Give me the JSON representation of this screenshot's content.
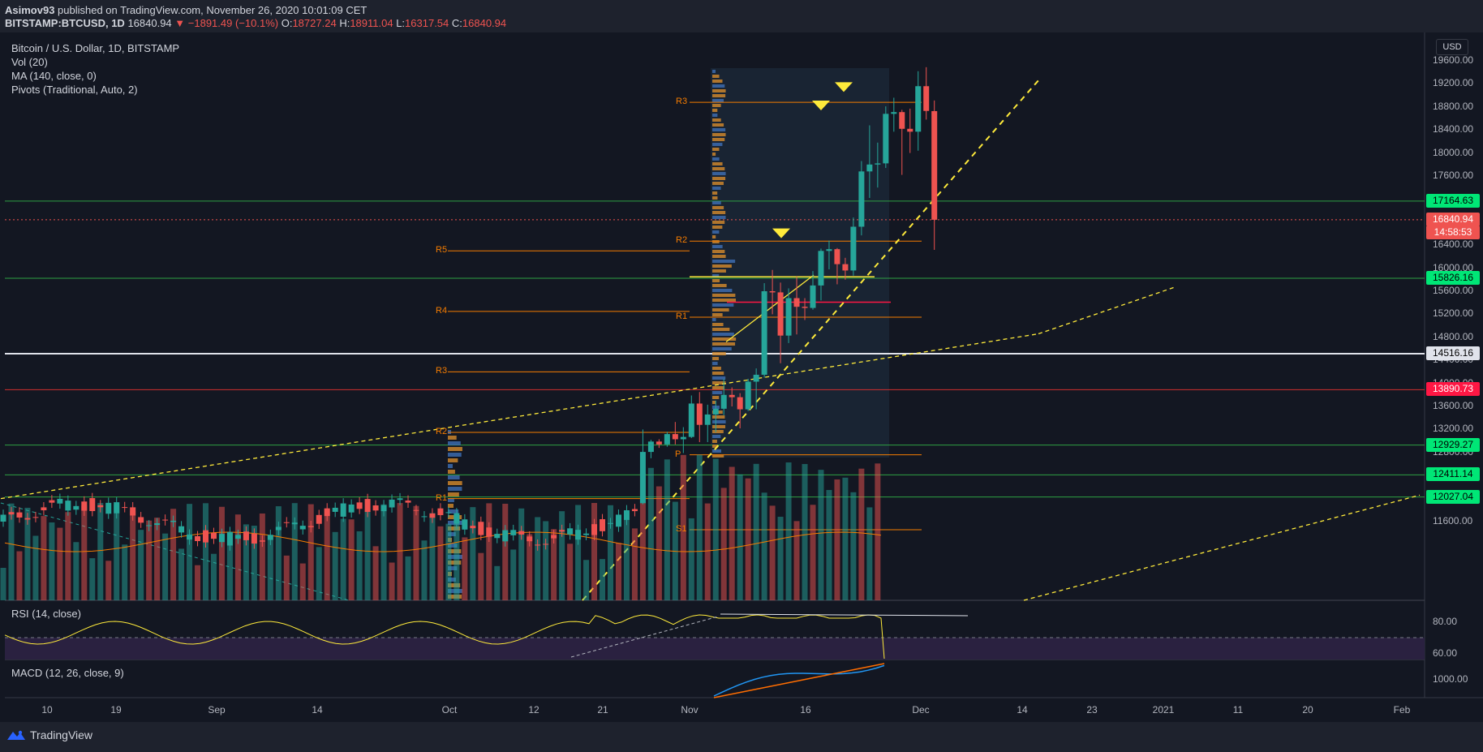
{
  "header": {
    "author": "Asimov93",
    "published": " published on TradingView.com, November 26, 2020 10:01:09 CET",
    "symbol": "BITSTAMP:BTCUSD, 1D",
    "last": "16840.94",
    "change": "▼ −1891.49 (−10.1%)",
    "o_label": "O:",
    "o": "18727.24",
    "h_label": "H:",
    "h": "18911.04",
    "l_label": "L:",
    "l": "16317.54",
    "c_label": "C:",
    "c": "16840.94"
  },
  "legend": {
    "title": "Bitcoin / U.S. Dollar, 1D, BITSTAMP",
    "vol": "Vol (20)",
    "ma": "MA (140, close, 0)",
    "pivots": "Pivots (Traditional, Auto, 2)",
    "rsi": "RSI (14, close)",
    "macd": "MACD (12, 26, close, 9)"
  },
  "currency_button": "USD",
  "footer": {
    "brand": "TradingView"
  },
  "chart_data": {
    "type": "candlestick",
    "symbol": "BTCUSD",
    "interval": "1D",
    "price_ticks": [
      "19600.00",
      "19200.00",
      "18800.00",
      "18400.00",
      "18000.00",
      "17600.00",
      "16400.00",
      "16000.00",
      "15600.00",
      "15200.00",
      "14800.00",
      "14400.00",
      "14000.00",
      "13600.00",
      "13200.00",
      "12800.00",
      "11600.00"
    ],
    "price_tags": [
      {
        "label": "17164.63",
        "bg": "#00e676",
        "fg": "#000000",
        "price": 17164.63
      },
      {
        "label": "16840.94",
        "bg": "#ef5350",
        "fg": "#ffffff",
        "price": 16840.94
      },
      {
        "label": "14:58:53",
        "bg": "#ef5350",
        "fg": "#ffffff",
        "price": 16610
      },
      {
        "label": "15826.16",
        "bg": "#00e676",
        "fg": "#000000",
        "price": 15826.16
      },
      {
        "label": "14516.16",
        "bg": "#e0e3eb",
        "fg": "#000000",
        "price": 14516.16
      },
      {
        "label": "13890.73",
        "bg": "#ff1744",
        "fg": "#ffffff",
        "price": 13890.73
      },
      {
        "label": "12929.27",
        "bg": "#00e676",
        "fg": "#000000",
        "price": 12929.27
      },
      {
        "label": "12411.14",
        "bg": "#00e676",
        "fg": "#000000",
        "price": 12411.14
      },
      {
        "label": "12027.04",
        "bg": "#00e676",
        "fg": "#000000",
        "price": 12027.04
      }
    ],
    "horizontal_levels": [
      {
        "price": 17164.63,
        "color": "#2ea043"
      },
      {
        "price": 16840.94,
        "color": "#ef5350",
        "dotted": true
      },
      {
        "price": 15826.16,
        "color": "#2ea043"
      },
      {
        "price": 14516.16,
        "color": "#e0e3eb"
      },
      {
        "price": 13890.73,
        "color": "#d32f2f"
      },
      {
        "price": 12929.27,
        "color": "#2ea043"
      },
      {
        "price": 12411.14,
        "color": "#2ea043"
      },
      {
        "price": 12027.04,
        "color": "#2ea043"
      }
    ],
    "pivot_levels_current": [
      {
        "label": "R3",
        "price": 18880
      },
      {
        "label": "R2",
        "price": 16470
      },
      {
        "label": "R1",
        "price": 15150
      },
      {
        "label": "P",
        "price": 12760
      },
      {
        "label": "S1",
        "price": 11460
      }
    ],
    "pivot_levels_previous": [
      {
        "label": "R5",
        "price": 16300
      },
      {
        "label": "R4",
        "price": 15250
      },
      {
        "label": "R3",
        "price": 14200
      },
      {
        "label": "R2",
        "price": 13150
      },
      {
        "label": "R1",
        "price": 12000
      }
    ],
    "date_ticks": [
      "10",
      "19",
      "Sep",
      "14",
      "Oct",
      "12",
      "21",
      "Nov",
      "16",
      "Dec",
      "14",
      "23",
      "2021",
      "11",
      "20",
      "Feb"
    ],
    "rsi_ticks": [
      "80.00",
      "60.00"
    ],
    "macd_ticks": [
      "1000.00"
    ],
    "candles": [
      {
        "d": "Oct 21",
        "o": 11920,
        "h": 13200,
        "l": 11900,
        "c": 12810
      },
      {
        "d": "Oct 22",
        "o": 12810,
        "h": 13020,
        "l": 12700,
        "c": 12990
      },
      {
        "d": "Oct 23",
        "o": 12990,
        "h": 13030,
        "l": 12880,
        "c": 12940
      },
      {
        "d": "Oct 24",
        "o": 12940,
        "h": 13160,
        "l": 12900,
        "c": 13120
      },
      {
        "d": "Oct 25",
        "o": 13120,
        "h": 13330,
        "l": 12940,
        "c": 13030
      },
      {
        "d": "Oct 26",
        "o": 13030,
        "h": 13240,
        "l": 12790,
        "c": 13070
      },
      {
        "d": "Oct 27",
        "o": 13070,
        "h": 13790,
        "l": 13050,
        "c": 13650
      },
      {
        "d": "Oct 28",
        "o": 13650,
        "h": 13850,
        "l": 12980,
        "c": 13280
      },
      {
        "d": "Oct 29",
        "o": 13280,
        "h": 13630,
        "l": 12980,
        "c": 13460
      },
      {
        "d": "Oct 30",
        "o": 13460,
        "h": 13700,
        "l": 13150,
        "c": 13560
      },
      {
        "d": "Oct 31",
        "o": 13560,
        "h": 14080,
        "l": 13450,
        "c": 13800
      },
      {
        "d": "Nov 1",
        "o": 13800,
        "h": 13930,
        "l": 13600,
        "c": 13760
      },
      {
        "d": "Nov 2",
        "o": 13760,
        "h": 13830,
        "l": 13220,
        "c": 13550
      },
      {
        "d": "Nov 3",
        "o": 13550,
        "h": 14080,
        "l": 13520,
        "c": 14030
      },
      {
        "d": "Nov 4",
        "o": 14030,
        "h": 14260,
        "l": 13550,
        "c": 14150
      },
      {
        "d": "Nov 5",
        "o": 14150,
        "h": 15740,
        "l": 14100,
        "c": 15600
      },
      {
        "d": "Nov 6",
        "o": 15600,
        "h": 15970,
        "l": 15200,
        "c": 15580
      },
      {
        "d": "Nov 7",
        "o": 15580,
        "h": 15750,
        "l": 14350,
        "c": 14830
      },
      {
        "d": "Nov 8",
        "o": 14830,
        "h": 15650,
        "l": 14700,
        "c": 15480
      },
      {
        "d": "Nov 9",
        "o": 15480,
        "h": 15850,
        "l": 14850,
        "c": 15330
      },
      {
        "d": "Nov 10",
        "o": 15330,
        "h": 15480,
        "l": 15100,
        "c": 15310
      },
      {
        "d": "Nov 11",
        "o": 15310,
        "h": 15950,
        "l": 15280,
        "c": 15700
      },
      {
        "d": "Nov 12",
        "o": 15700,
        "h": 16340,
        "l": 15440,
        "c": 16300
      },
      {
        "d": "Nov 13",
        "o": 16300,
        "h": 16480,
        "l": 15980,
        "c": 16330
      },
      {
        "d": "Nov 14",
        "o": 16330,
        "h": 16350,
        "l": 15720,
        "c": 16070
      },
      {
        "d": "Nov 15",
        "o": 16070,
        "h": 16180,
        "l": 15800,
        "c": 15960
      },
      {
        "d": "Nov 16",
        "o": 15960,
        "h": 16880,
        "l": 15870,
        "c": 16720
      },
      {
        "d": "Nov 17",
        "o": 16720,
        "h": 17860,
        "l": 16570,
        "c": 17680
      },
      {
        "d": "Nov 18",
        "o": 17680,
        "h": 18480,
        "l": 17220,
        "c": 17800
      },
      {
        "d": "Nov 19",
        "o": 17800,
        "h": 18180,
        "l": 17400,
        "c": 17820
      },
      {
        "d": "Nov 20",
        "o": 17820,
        "h": 18810,
        "l": 17740,
        "c": 18680
      },
      {
        "d": "Nov 21",
        "o": 18680,
        "h": 18960,
        "l": 18370,
        "c": 18710
      },
      {
        "d": "Nov 22",
        "o": 18710,
        "h": 18750,
        "l": 17620,
        "c": 18420
      },
      {
        "d": "Nov 23",
        "o": 18420,
        "h": 18770,
        "l": 18000,
        "c": 18370
      },
      {
        "d": "Nov 24",
        "o": 18370,
        "h": 19420,
        "l": 18040,
        "c": 19160
      },
      {
        "d": "Nov 25",
        "o": 19160,
        "h": 19490,
        "l": 18580,
        "c": 18730
      },
      {
        "d": "Nov 26",
        "o": 18727.24,
        "h": 18911.04,
        "l": 16317.54,
        "c": 16840.94
      }
    ]
  }
}
